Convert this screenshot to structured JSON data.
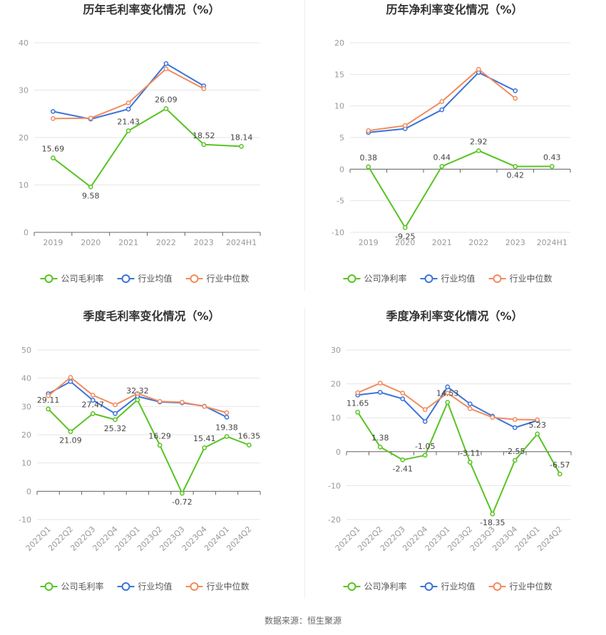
{
  "colors": {
    "company": "#58c322",
    "industry_avg": "#3b73d9",
    "industry_median": "#f08c5e"
  },
  "source_text": "数据来源：恒生聚源",
  "chart_data": [
    {
      "type": "line",
      "title": "历年毛利率变化情况（%）",
      "categories": [
        "2019",
        "2020",
        "2021",
        "2022",
        "2023",
        "2024H1"
      ],
      "ylim": [
        0,
        40
      ],
      "yticks": [
        0,
        10,
        20,
        30,
        40
      ],
      "rotate_labels": false,
      "legend_position": "bottom",
      "series": [
        {
          "name": "公司毛利率",
          "role": "company",
          "values": [
            15.69,
            9.58,
            21.43,
            26.09,
            18.52,
            18.14
          ],
          "labels": [
            "15.69",
            "9.58",
            "21.43",
            "26.09",
            "18.52",
            "18.14"
          ]
        },
        {
          "name": "行业均值",
          "role": "industry_avg",
          "values": [
            25.5,
            23.9,
            26.0,
            35.6,
            30.9,
            null
          ]
        },
        {
          "name": "行业中位数",
          "role": "industry_median",
          "values": [
            24.0,
            24.1,
            27.3,
            34.5,
            30.3,
            null
          ]
        }
      ]
    },
    {
      "type": "line",
      "title": "历年净利率变化情况（%）",
      "categories": [
        "2019",
        "2020",
        "2021",
        "2022",
        "2023",
        "2024H1"
      ],
      "ylim": [
        -10,
        20
      ],
      "yticks": [
        -10,
        -5,
        0,
        5,
        10,
        15,
        20
      ],
      "rotate_labels": false,
      "legend_position": "bottom",
      "series": [
        {
          "name": "公司净利率",
          "role": "company",
          "values": [
            0.38,
            -9.25,
            0.44,
            2.92,
            0.42,
            0.43
          ],
          "labels": [
            "0.38",
            "-9.25",
            "0.44",
            "2.92",
            "0.42",
            "0.43"
          ]
        },
        {
          "name": "行业均值",
          "role": "industry_avg",
          "values": [
            5.8,
            6.4,
            9.4,
            15.3,
            12.4,
            null
          ]
        },
        {
          "name": "行业中位数",
          "role": "industry_median",
          "values": [
            6.1,
            6.9,
            10.7,
            15.8,
            11.2,
            null
          ]
        }
      ]
    },
    {
      "type": "line",
      "title": "季度毛利率变化情况（%）",
      "categories": [
        "2022Q1",
        "2022Q2",
        "2022Q3",
        "2022Q4",
        "2023Q1",
        "2023Q2",
        "2023Q3",
        "2023Q4",
        "2024Q1",
        "2024Q2"
      ],
      "ylim": [
        -10,
        50
      ],
      "yticks": [
        -10,
        0,
        10,
        20,
        30,
        40,
        50
      ],
      "rotate_labels": true,
      "legend_position": "bottom",
      "series": [
        {
          "name": "公司毛利率",
          "role": "company",
          "values": [
            29.11,
            21.09,
            27.47,
            25.32,
            32.32,
            16.29,
            -0.72,
            15.41,
            19.38,
            16.35
          ],
          "labels": [
            "29.11",
            "21.09",
            "27.47",
            "25.32",
            "32.32",
            "16.29",
            "-0.72",
            "15.41",
            "19.38",
            "16.35"
          ]
        },
        {
          "name": "行业均值",
          "role": "industry_avg",
          "values": [
            34.5,
            38.8,
            32.2,
            27.5,
            33.6,
            31.6,
            31.3,
            30.1,
            26.2,
            null
          ]
        },
        {
          "name": "行业中位数",
          "role": "industry_median",
          "values": [
            33.8,
            40.3,
            34.0,
            30.6,
            34.6,
            31.8,
            31.5,
            30.0,
            27.8,
            null
          ]
        }
      ]
    },
    {
      "type": "line",
      "title": "季度净利率变化情况（%）",
      "categories": [
        "2022Q1",
        "2022Q2",
        "2022Q3",
        "2022Q4",
        "2023Q1",
        "2023Q2",
        "2023Q3",
        "2023Q4",
        "2024Q1",
        "2024Q2"
      ],
      "ylim": [
        -20,
        30
      ],
      "yticks": [
        -20,
        -10,
        0,
        10,
        20,
        30
      ],
      "rotate_labels": true,
      "legend_position": "bottom",
      "series": [
        {
          "name": "公司净利率",
          "role": "company",
          "values": [
            11.65,
            1.38,
            -2.41,
            -1.05,
            14.53,
            -3.11,
            -18.35,
            -2.55,
            5.23,
            -6.57
          ],
          "labels": [
            "11.65",
            "1.38",
            "-2.41",
            "-1.05",
            "14.53",
            "-3.11",
            "-18.35",
            "-2.55",
            "5.23",
            "-6.57"
          ]
        },
        {
          "name": "行业均值",
          "role": "industry_avg",
          "values": [
            16.7,
            17.5,
            15.6,
            8.9,
            19.1,
            14.1,
            10.5,
            7.1,
            9.2,
            null
          ]
        },
        {
          "name": "行业中位数",
          "role": "industry_median",
          "values": [
            17.4,
            20.2,
            17.3,
            12.4,
            17.3,
            12.7,
            10.1,
            9.5,
            9.4,
            null
          ]
        }
      ]
    }
  ]
}
